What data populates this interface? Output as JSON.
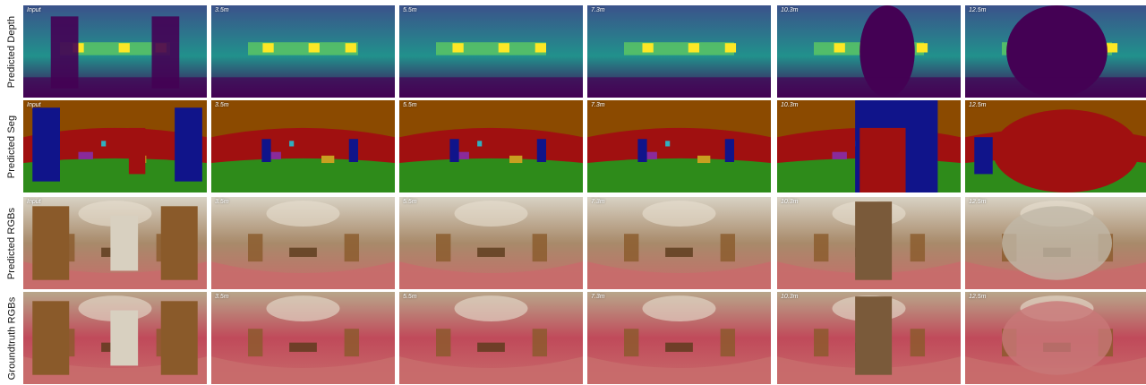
{
  "rows": [
    {
      "label": "Predicted Depth",
      "kind": "depth"
    },
    {
      "label": "Predicted Seg",
      "kind": "seg"
    },
    {
      "label": "Predicted RGBs",
      "kind": "rgb"
    },
    {
      "label": "Groundtruth RGBs",
      "kind": "gt"
    }
  ],
  "columns": [
    {
      "tag": "Input"
    },
    {
      "tag": "3.5m"
    },
    {
      "tag": "5.5m"
    },
    {
      "tag": "7.3m"
    },
    {
      "tag": "10.3m"
    },
    {
      "tag": "12.5m"
    }
  ],
  "gt_first_column_tag": "",
  "palette": {
    "depth_far": "#440154",
    "depth_mid": "#3b528b",
    "depth_teal": "#21918c",
    "depth_green": "#5ec962",
    "depth_near": "#fde725",
    "seg_ceiling": "#8b4a00",
    "seg_wall": "#a01010",
    "seg_door": "#10148a",
    "seg_floor": "#2e8b1a",
    "seg_object": "#c8a020",
    "seg_window": "#30b0c0",
    "seg_misc": "#8a2a9a",
    "rgb_floor": "#c86b6b",
    "rgb_wall": "#c04a5a",
    "rgb_wood": "#8a5a2a",
    "rgb_light": "#e8e0d0"
  }
}
